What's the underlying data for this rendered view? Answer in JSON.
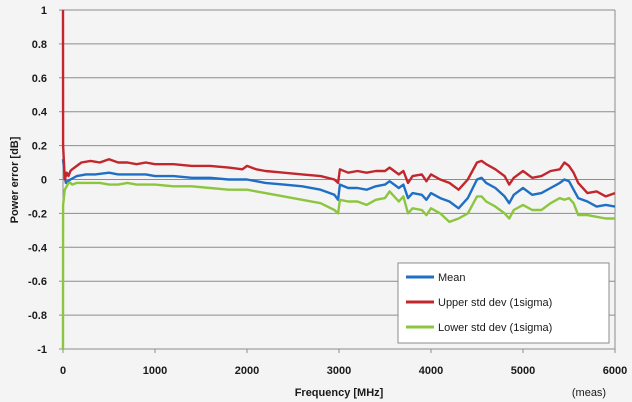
{
  "chart_data": {
    "type": "line",
    "xlabel": "Frequency [MHz]",
    "ylabel": "Power error [dB]",
    "xlim": [
      0,
      6000
    ],
    "ylim": [
      -1,
      1
    ],
    "xticks": [
      0,
      1000,
      2000,
      3000,
      4000,
      5000,
      6000
    ],
    "yticks": [
      -1,
      -0.8,
      -0.6,
      -0.4,
      -0.2,
      0,
      0.2,
      0.4,
      0.6,
      0.8,
      1
    ],
    "ytick_labels": [
      "-1",
      "-0.8",
      "-0.6",
      "-0.4",
      "-0.2",
      "0",
      "0.2",
      "0.4",
      "0.6",
      "0.8",
      "1"
    ],
    "grid": "horizontal",
    "legend_position": "bottom-right",
    "note": "(meas)",
    "series": [
      {
        "name": "Mean",
        "color": "#1f6fc5",
        "x": [
          0,
          30,
          80,
          150,
          250,
          350,
          500,
          600,
          700,
          800,
          900,
          1000,
          1200,
          1400,
          1600,
          1800,
          2000,
          2100,
          2200,
          2400,
          2600,
          2800,
          2950,
          2990,
          3010,
          3100,
          3200,
          3300,
          3400,
          3500,
          3550,
          3650,
          3700,
          3750,
          3800,
          3900,
          3950,
          4000,
          4100,
          4200,
          4300,
          4400,
          4500,
          4550,
          4600,
          4700,
          4800,
          4850,
          4900,
          5000,
          5100,
          5200,
          5300,
          5400,
          5450,
          5500,
          5550,
          5600,
          5700,
          5800,
          5900,
          6000
        ],
        "y": [
          0.12,
          -0.02,
          0.0,
          0.02,
          0.03,
          0.03,
          0.04,
          0.03,
          0.03,
          0.03,
          0.03,
          0.02,
          0.02,
          0.01,
          0.01,
          0.0,
          0.0,
          -0.01,
          -0.02,
          -0.03,
          -0.04,
          -0.06,
          -0.09,
          -0.12,
          -0.03,
          -0.05,
          -0.05,
          -0.06,
          -0.04,
          -0.03,
          -0.01,
          -0.05,
          -0.03,
          -0.11,
          -0.08,
          -0.09,
          -0.12,
          -0.08,
          -0.11,
          -0.13,
          -0.17,
          -0.11,
          0.0,
          0.01,
          -0.02,
          -0.05,
          -0.1,
          -0.14,
          -0.09,
          -0.05,
          -0.09,
          -0.08,
          -0.05,
          -0.02,
          0.0,
          -0.01,
          -0.06,
          -0.11,
          -0.13,
          -0.16,
          -0.15,
          -0.16
        ]
      },
      {
        "name": "Upper std dev (1sigma)",
        "color": "#c1272d",
        "x": [
          0,
          1,
          20,
          40,
          60,
          80,
          100,
          150,
          200,
          300,
          400,
          500,
          600,
          700,
          800,
          900,
          1000,
          1200,
          1400,
          1600,
          1800,
          1950,
          2000,
          2100,
          2200,
          2400,
          2600,
          2800,
          2950,
          2990,
          3010,
          3100,
          3200,
          3300,
          3400,
          3500,
          3550,
          3650,
          3700,
          3750,
          3800,
          3900,
          3950,
          4000,
          4100,
          4200,
          4300,
          4400,
          4500,
          4550,
          4600,
          4700,
          4800,
          4850,
          4900,
          5000,
          5100,
          5200,
          5300,
          5400,
          5450,
          5500,
          5550,
          5600,
          5700,
          5800,
          5900,
          6000
        ],
        "y": [
          1.0,
          0.2,
          0.0,
          0.04,
          0.02,
          0.05,
          0.06,
          0.08,
          0.1,
          0.11,
          0.1,
          0.12,
          0.1,
          0.1,
          0.09,
          0.1,
          0.09,
          0.09,
          0.08,
          0.08,
          0.07,
          0.06,
          0.08,
          0.06,
          0.05,
          0.04,
          0.03,
          0.02,
          0.0,
          -0.02,
          0.06,
          0.04,
          0.05,
          0.04,
          0.05,
          0.05,
          0.07,
          0.03,
          0.05,
          -0.02,
          0.02,
          0.03,
          -0.01,
          0.03,
          0.0,
          -0.02,
          -0.06,
          0.0,
          0.1,
          0.11,
          0.09,
          0.06,
          0.02,
          -0.03,
          0.01,
          0.05,
          0.01,
          0.02,
          0.05,
          0.06,
          0.1,
          0.08,
          0.04,
          -0.02,
          -0.08,
          -0.07,
          -0.1,
          -0.08
        ]
      },
      {
        "name": "Lower std dev (1sigma)",
        "color": "#8cc63f",
        "x": [
          0,
          1,
          20,
          40,
          60,
          80,
          100,
          150,
          200,
          300,
          400,
          500,
          600,
          700,
          800,
          1000,
          1200,
          1400,
          1600,
          1800,
          2000,
          2100,
          2200,
          2400,
          2600,
          2800,
          2950,
          2990,
          3010,
          3100,
          3200,
          3300,
          3400,
          3500,
          3550,
          3650,
          3700,
          3750,
          3800,
          3900,
          3950,
          4000,
          4100,
          4200,
          4300,
          4400,
          4500,
          4550,
          4600,
          4700,
          4800,
          4850,
          4900,
          5000,
          5100,
          5200,
          5300,
          5400,
          5450,
          5500,
          5550,
          5600,
          5700,
          5800,
          5900,
          6000
        ],
        "y": [
          -1.0,
          -0.15,
          -0.06,
          -0.04,
          -0.02,
          -0.02,
          -0.03,
          -0.02,
          -0.02,
          -0.02,
          -0.02,
          -0.03,
          -0.03,
          -0.02,
          -0.03,
          -0.03,
          -0.04,
          -0.04,
          -0.05,
          -0.06,
          -0.06,
          -0.07,
          -0.08,
          -0.1,
          -0.12,
          -0.14,
          -0.18,
          -0.2,
          -0.12,
          -0.13,
          -0.13,
          -0.15,
          -0.12,
          -0.11,
          -0.07,
          -0.13,
          -0.1,
          -0.2,
          -0.17,
          -0.18,
          -0.21,
          -0.17,
          -0.2,
          -0.25,
          -0.23,
          -0.2,
          -0.1,
          -0.1,
          -0.13,
          -0.16,
          -0.2,
          -0.23,
          -0.18,
          -0.15,
          -0.18,
          -0.18,
          -0.14,
          -0.11,
          -0.12,
          -0.11,
          -0.14,
          -0.21,
          -0.21,
          -0.22,
          -0.23,
          -0.23
        ]
      }
    ]
  }
}
